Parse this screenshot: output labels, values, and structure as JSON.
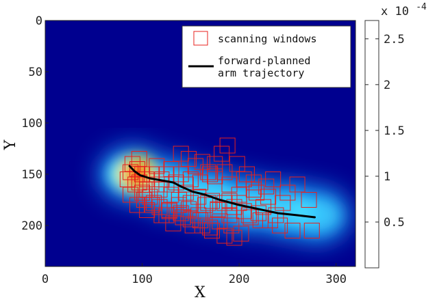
{
  "chart_data": {
    "type": "heatmap",
    "xlabel": "X",
    "ylabel": "Y",
    "xlim": [
      0,
      320
    ],
    "ylim": [
      240,
      0
    ],
    "xticks": [
      "0",
      "100",
      "200",
      "300"
    ],
    "yticks": [
      "0",
      "50",
      "100",
      "150",
      "200"
    ],
    "colormap": "jet",
    "colorbar": {
      "ticks": [
        "0.5",
        "1",
        "1.5",
        "2",
        "2.5"
      ],
      "tick_values": [
        0.5,
        1.0,
        1.5,
        2.0,
        2.5
      ],
      "exponent_label": "x 10",
      "exponent_power": "-4",
      "range": [
        0,
        2.7
      ],
      "style": "white"
    },
    "legend": {
      "position": "top-right",
      "entries": [
        {
          "label": "scanning windows",
          "style": "red-square",
          "color": "#e8201c"
        },
        {
          "label": "forward-planned",
          "label2": "arm trajectory",
          "style": "black-line",
          "color": "#000000"
        }
      ]
    },
    "series": [
      {
        "name": "forward-planned arm trajectory",
        "type": "line",
        "color": "#000000",
        "x": [
          87,
          92,
          98,
          108,
          120,
          132,
          140,
          152,
          165,
          180,
          200,
          220,
          240,
          260,
          278
        ],
        "y": [
          142,
          147,
          151,
          154,
          156,
          158,
          162,
          167,
          170,
          175,
          180,
          184,
          188,
          190,
          192
        ]
      },
      {
        "name": "scanning windows",
        "type": "squares",
        "color": "#e8201c",
        "x": [
          90,
          95,
          100,
          85,
          93,
          105,
          88,
          97,
          110,
          115,
          120,
          125,
          100,
          108,
          118,
          130,
          138,
          145,
          150,
          158,
          165,
          172,
          178,
          185,
          190,
          195,
          200,
          205,
          212,
          220,
          225,
          232,
          238,
          245,
          250,
          260,
          272,
          275,
          140,
          148,
          155,
          162,
          168,
          175,
          182,
          188,
          198,
          208,
          215,
          228,
          235,
          125,
          132,
          142,
          152,
          160,
          170,
          180,
          192,
          202,
          210,
          222,
          242,
          255,
          95,
          105,
          112,
          120,
          128,
          138,
          148,
          158,
          168,
          178,
          190,
          200,
          215,
          230,
          145,
          160,
          175,
          190,
          205,
          218,
          130,
          140,
          150,
          170,
          185,
          105,
          115,
          125,
          135,
          97,
          88,
          102,
          110,
          118,
          128,
          140,
          150,
          162,
          172,
          185,
          195
        ],
        "y": [
          140,
          145,
          150,
          155,
          160,
          165,
          148,
          158,
          150,
          142,
          155,
          160,
          168,
          172,
          165,
          170,
          175,
          168,
          178,
          172,
          180,
          176,
          185,
          178,
          190,
          182,
          178,
          186,
          192,
          188,
          182,
          195,
          190,
          178,
          168,
          160,
          175,
          205,
          130,
          135,
          142,
          138,
          148,
          140,
          130,
          122,
          140,
          150,
          158,
          162,
          155,
          190,
          198,
          192,
          200,
          195,
          202,
          196,
          200,
          208,
          190,
          195,
          200,
          205,
          180,
          185,
          178,
          190,
          186,
          180,
          184,
          190,
          178,
          184,
          176,
          170,
          165,
          172,
          160,
          158,
          152,
          160,
          155,
          168,
          145,
          150,
          155,
          150,
          148,
          155,
          160,
          150,
          158,
          135,
          170,
          175,
          180,
          182,
          185,
          188,
          194,
          200,
          205,
          210,
          212
        ]
      }
    ],
    "density_field": {
      "peak": {
        "x": 92,
        "y": 150,
        "value": 2.6
      },
      "body_centers": [
        {
          "x": 90,
          "y": 150,
          "w": 1.0
        },
        {
          "x": 130,
          "y": 162,
          "w": 0.6
        },
        {
          "x": 170,
          "y": 172,
          "w": 0.55
        },
        {
          "x": 210,
          "y": 180,
          "w": 0.5
        },
        {
          "x": 250,
          "y": 185,
          "w": 0.45
        },
        {
          "x": 280,
          "y": 190,
          "w": 0.35
        }
      ]
    }
  }
}
